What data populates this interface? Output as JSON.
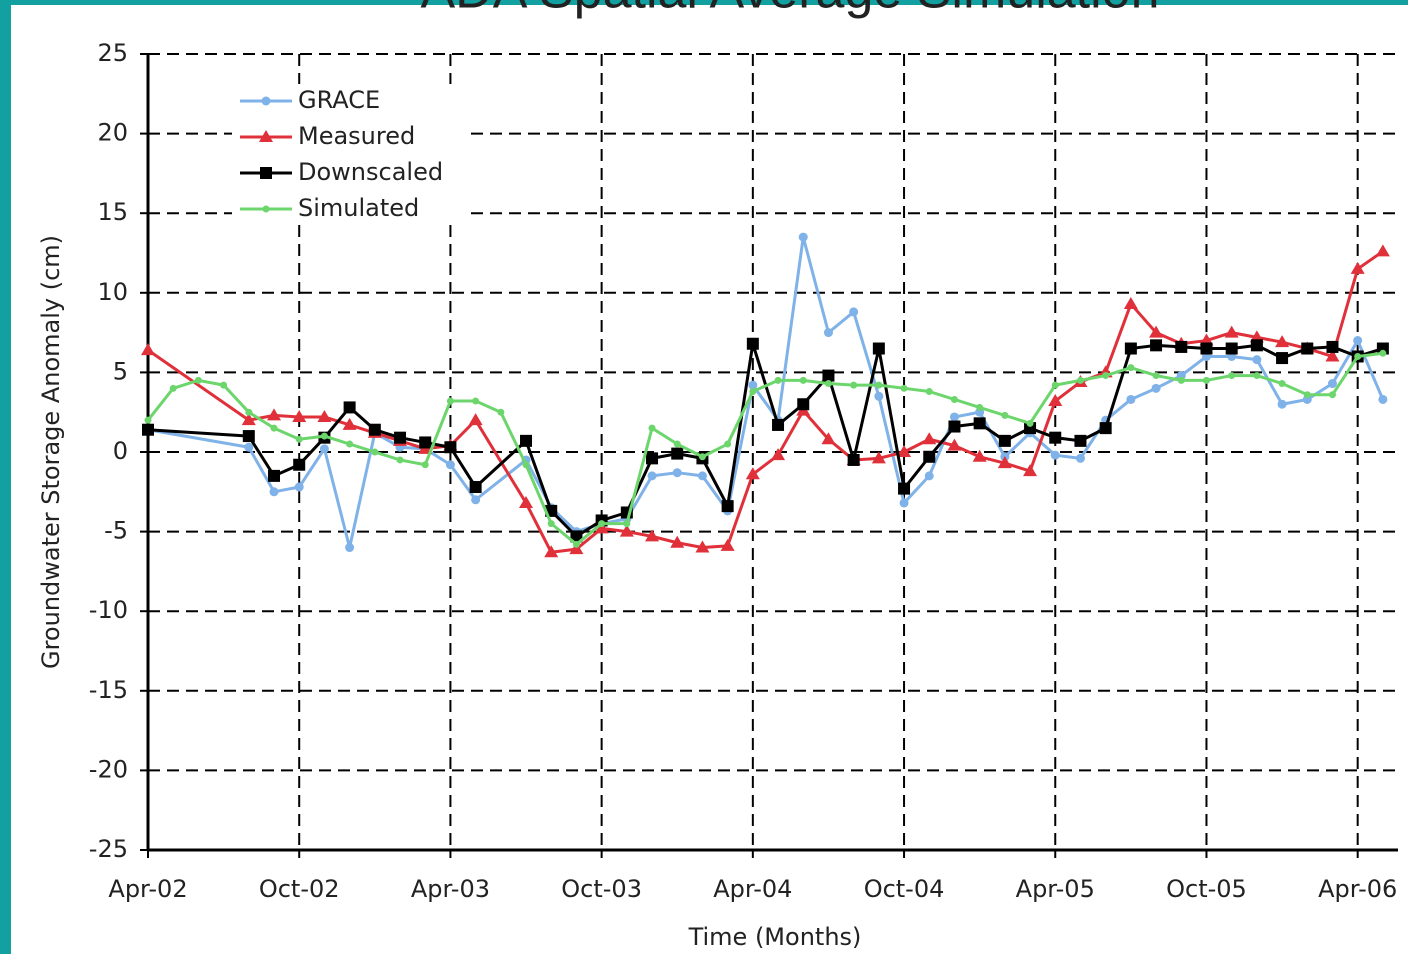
{
  "chart_data": {
    "type": "line",
    "title": "ADA Spatial Average Simulation",
    "xlabel": "Time (Months)",
    "ylabel": "Groundwater Storage Anomaly (cm)",
    "xlim": [
      0,
      49.6
    ],
    "xticks": [
      {
        "value": 0,
        "label": "Apr-02"
      },
      {
        "value": 6,
        "label": "Oct-02"
      },
      {
        "value": 12,
        "label": "Apr-03"
      },
      {
        "value": 18,
        "label": "Oct-03"
      },
      {
        "value": 24,
        "label": "Apr-04"
      },
      {
        "value": 30,
        "label": "Oct-04"
      },
      {
        "value": 36,
        "label": "Apr-05"
      },
      {
        "value": 42,
        "label": "Oct-05"
      },
      {
        "value": 48,
        "label": "Apr-06"
      }
    ],
    "ylim": [
      -25,
      25
    ],
    "yticks": [
      -25,
      -20,
      -15,
      -10,
      -5,
      0,
      5,
      10,
      15,
      20,
      25
    ],
    "grid": true,
    "legend": "upper left",
    "series": [
      {
        "name": "GRACE",
        "color": "#7fb2e8",
        "marker": "circle",
        "x": [
          0,
          4,
          5,
          6,
          7,
          8,
          9,
          10,
          11,
          12,
          13,
          15,
          16,
          17,
          18,
          19,
          20,
          21,
          22,
          23,
          24,
          25,
          26,
          27,
          28,
          29,
          30,
          31,
          32,
          33,
          34,
          35,
          36,
          37,
          38,
          39,
          40,
          41,
          42,
          43,
          44,
          45,
          46,
          47,
          48,
          49
        ],
        "values": [
          1.4,
          0.3,
          -2.5,
          -2.2,
          0.2,
          -6.0,
          1.2,
          0.3,
          0.2,
          -0.8,
          -3.0,
          -0.5,
          -3.5,
          -5.0,
          -4.5,
          -4.2,
          -1.5,
          -1.3,
          -1.5,
          -3.7,
          4.2,
          2.0,
          13.5,
          7.5,
          8.8,
          3.5,
          -3.2,
          -1.5,
          2.2,
          2.5,
          -0.3,
          1.2,
          -0.2,
          -0.4,
          2.0,
          3.3,
          4.0,
          4.8,
          6.0,
          6.0,
          5.8,
          3.0,
          3.3,
          4.3,
          7.0,
          3.3
        ]
      },
      {
        "name": "Measured",
        "color": "#e0303a",
        "marker": "triangle",
        "x": [
          0,
          4,
          5,
          6,
          7,
          8,
          9,
          10,
          11,
          12,
          13,
          15,
          16,
          17,
          18,
          19,
          20,
          21,
          22,
          23,
          24,
          25,
          26,
          27,
          28,
          29,
          30,
          31,
          32,
          33,
          34,
          35,
          36,
          37,
          38,
          39,
          40,
          41,
          42,
          43,
          44,
          45,
          46,
          47,
          48,
          49
        ],
        "values": [
          6.4,
          2.0,
          2.3,
          2.2,
          2.2,
          1.7,
          1.2,
          0.7,
          0.2,
          0.4,
          2.0,
          -3.2,
          -6.3,
          -6.1,
          -4.8,
          -5.0,
          -5.3,
          -5.7,
          -6.0,
          -5.9,
          -1.4,
          -0.2,
          2.6,
          0.8,
          -0.5,
          -0.4,
          0.0,
          0.8,
          0.4,
          -0.3,
          -0.7,
          -1.2,
          3.2,
          4.4,
          5.0,
          9.3,
          7.5,
          6.8,
          7.0,
          7.5,
          7.2,
          6.9,
          6.5,
          6.0,
          11.5,
          12.6
        ]
      },
      {
        "name": "Downscaled",
        "color": "#000000",
        "marker": "square",
        "x": [
          0,
          4,
          5,
          6,
          7,
          8,
          9,
          10,
          11,
          12,
          13,
          15,
          16,
          17,
          18,
          19,
          20,
          21,
          22,
          23,
          24,
          25,
          26,
          27,
          28,
          29,
          30,
          31,
          32,
          33,
          34,
          35,
          36,
          37,
          38,
          39,
          40,
          41,
          42,
          43,
          44,
          45,
          46,
          47,
          48,
          49
        ],
        "values": [
          1.4,
          1.0,
          -1.5,
          -0.8,
          0.9,
          2.8,
          1.4,
          0.9,
          0.6,
          0.3,
          -2.2,
          0.7,
          -3.7,
          -5.3,
          -4.3,
          -3.8,
          -0.4,
          -0.1,
          -0.4,
          -3.4,
          6.8,
          1.7,
          3.0,
          4.8,
          -0.5,
          6.5,
          -2.3,
          -0.3,
          1.6,
          1.8,
          0.7,
          1.5,
          0.9,
          0.7,
          1.5,
          6.5,
          6.7,
          6.6,
          6.5,
          6.5,
          6.7,
          5.9,
          6.5,
          6.6,
          6.0,
          6.5
        ]
      },
      {
        "name": "Simulated",
        "color": "#6cd66c",
        "marker": "dot",
        "x": [
          0,
          1,
          2,
          3,
          4,
          5,
          6,
          7,
          8,
          9,
          10,
          11,
          12,
          13,
          14,
          15,
          16,
          17,
          18,
          19,
          20,
          21,
          22,
          23,
          24,
          25,
          26,
          27,
          28,
          29,
          30,
          31,
          32,
          33,
          34,
          35,
          36,
          37,
          38,
          39,
          40,
          41,
          42,
          43,
          44,
          45,
          46,
          47,
          48,
          49
        ],
        "values": [
          2.0,
          4.0,
          4.5,
          4.2,
          2.5,
          1.5,
          0.8,
          1.0,
          0.5,
          0.0,
          -0.5,
          -0.8,
          3.2,
          3.2,
          2.5,
          -0.8,
          -4.5,
          -5.8,
          -4.5,
          -4.5,
          1.5,
          0.5,
          -0.3,
          0.5,
          3.8,
          4.5,
          4.5,
          4.3,
          4.2,
          4.2,
          4.0,
          3.8,
          3.3,
          2.8,
          2.3,
          1.8,
          4.2,
          4.5,
          4.8,
          5.3,
          4.8,
          4.5,
          4.5,
          4.8,
          4.8,
          4.3,
          3.6,
          3.6,
          6.0,
          6.2
        ]
      }
    ]
  }
}
